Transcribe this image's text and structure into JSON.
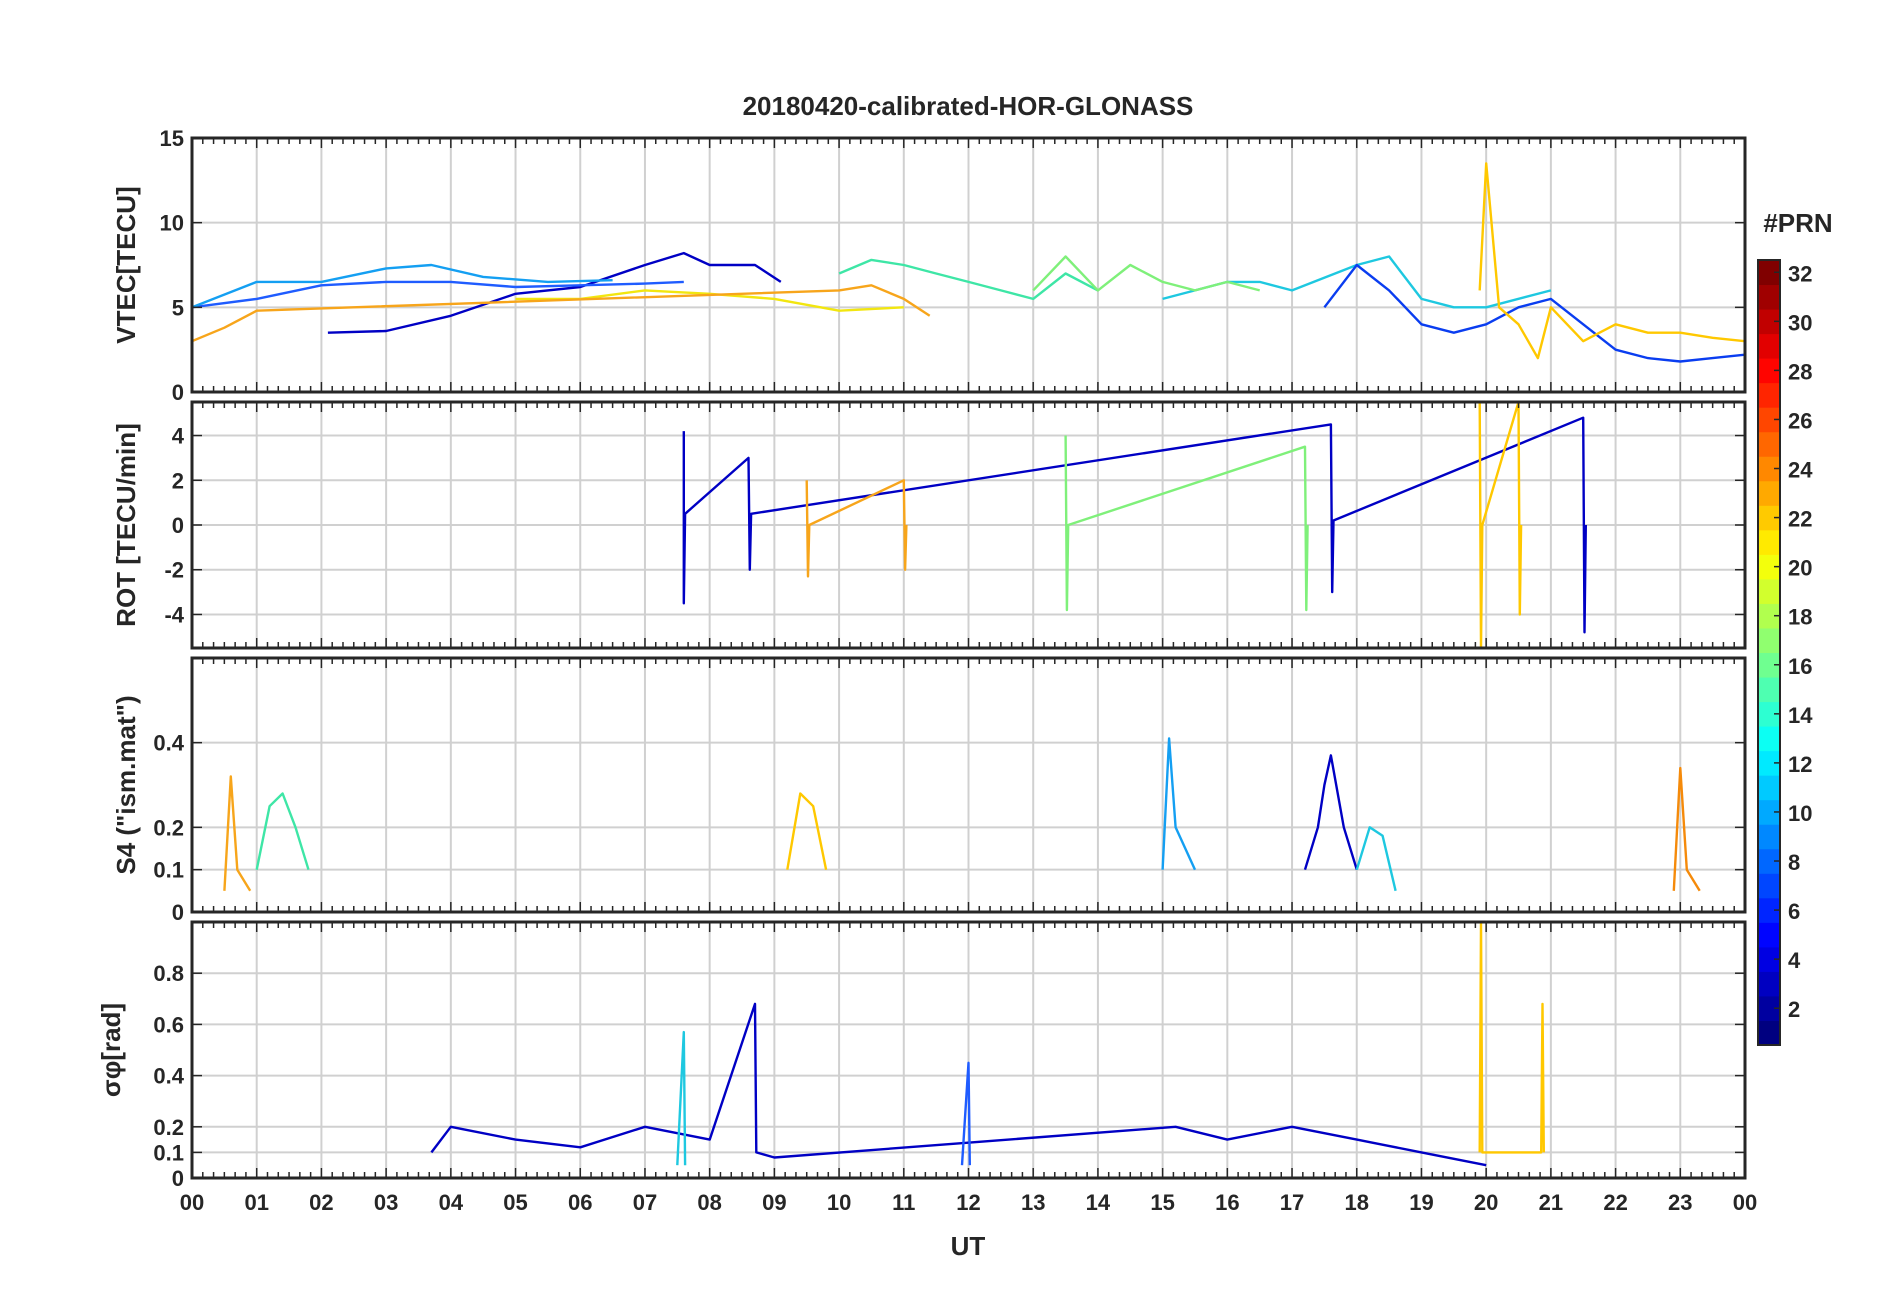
{
  "chart_data": {
    "type": "line",
    "title": "20180420-calibrated-HOR-GLONASS",
    "xlabel": "UT",
    "x_tick_labels": [
      "00",
      "01",
      "02",
      "03",
      "04",
      "05",
      "06",
      "07",
      "08",
      "09",
      "10",
      "11",
      "12",
      "13",
      "14",
      "15",
      "16",
      "17",
      "18",
      "19",
      "20",
      "21",
      "22",
      "23",
      "00"
    ],
    "xlim": [
      0,
      24
    ],
    "grid": true,
    "colorbar": {
      "label": "#PRN",
      "range": [
        1,
        32
      ],
      "tick_labels": [
        "2",
        "4",
        "6",
        "8",
        "10",
        "12",
        "14",
        "16",
        "18",
        "20",
        "22",
        "24",
        "26",
        "28",
        "30",
        "32"
      ]
    },
    "panels": [
      {
        "name": "vtec",
        "ylabel": "VTEC[TECU]",
        "ylim": [
          0,
          15
        ],
        "y_tick_labels": [
          "0",
          "5",
          "10",
          "15"
        ],
        "y_tick_values": [
          0,
          5,
          10,
          15
        ],
        "series": [
          {
            "prn": 2,
            "color": "#0000c4",
            "x": [
              2.1,
              3,
              4,
              5,
              6,
              7,
              7.6,
              8,
              8.7,
              9.1
            ],
            "values": [
              3.5,
              3.6,
              4.5,
              5.8,
              6.2,
              7.5,
              8.2,
              7.5,
              7.5,
              6.5
            ]
          },
          {
            "prn": 6,
            "color": "#1f5cff",
            "x": [
              0,
              1,
              2,
              3,
              4,
              5,
              6,
              7,
              7.6
            ],
            "values": [
              5,
              5.5,
              6.3,
              6.5,
              6.5,
              6.2,
              6.3,
              6.4,
              6.5
            ]
          },
          {
            "prn": 10,
            "color": "#149ff2",
            "x": [
              0,
              1,
              2,
              3,
              3.7,
              4.5,
              5.5,
              6.5
            ],
            "values": [
              5,
              6.5,
              6.5,
              7.3,
              7.5,
              6.8,
              6.5,
              6.6
            ]
          },
          {
            "prn": 12,
            "color": "#1ec8e0",
            "x": [
              15,
              15.5,
              16,
              16.5,
              17,
              18,
              18.5,
              19,
              19.5,
              20,
              21
            ],
            "values": [
              5.5,
              6,
              6.5,
              6.5,
              6,
              7.5,
              8,
              5.5,
              5,
              5,
              6
            ]
          },
          {
            "prn": 14,
            "color": "#3ee6a6",
            "x": [
              10,
              10.5,
              11,
              11.5,
              12,
              12.5,
              13,
              13.5,
              14
            ],
            "values": [
              7,
              7.8,
              7.5,
              7,
              6.5,
              6,
              5.5,
              7,
              6
            ]
          },
          {
            "prn": 16,
            "color": "#7ff07a",
            "x": [
              13,
              13.5,
              14,
              14.5,
              15,
              15.5,
              16,
              16.5
            ],
            "values": [
              6,
              8,
              6,
              7.5,
              6.5,
              6,
              6.5,
              6
            ]
          },
          {
            "prn": 20,
            "color": "#f2e60f",
            "x": [
              5,
              6,
              7,
              8,
              9,
              10,
              11
            ],
            "values": [
              5.5,
              5.5,
              6,
              5.8,
              5.5,
              4.8,
              5
            ]
          },
          {
            "prn": 23,
            "color": "#f7a51b",
            "x": [
              0,
              0.5,
              1,
              10,
              10.5,
              11,
              11.4
            ],
            "values": [
              3,
              3.8,
              4.8,
              6,
              6.3,
              5.5,
              4.5
            ]
          },
          {
            "prn": 8,
            "color": "#0a3df0",
            "x": [
              17.5,
              18,
              18.5,
              19,
              19.5,
              20,
              20.5,
              21,
              21.5,
              22,
              22.5,
              23,
              23.5,
              24
            ],
            "values": [
              5,
              7.5,
              6,
              4,
              3.5,
              4,
              5,
              5.5,
              4,
              2.5,
              2,
              1.8,
              2,
              2.2
            ]
          },
          {
            "prn": 21,
            "color": "#ffc800",
            "x": [
              19.9,
              20,
              20.2,
              20.5,
              20.8,
              21,
              21.5,
              22,
              22.5,
              23,
              23.5,
              24
            ],
            "values": [
              6,
              13.5,
              5,
              4,
              2,
              5,
              3,
              4,
              3.5,
              3.5,
              3.2,
              3
            ]
          }
        ]
      },
      {
        "name": "rot",
        "ylabel": "ROT [TECU/min]",
        "ylim": [
          -5.5,
          5.5
        ],
        "y_tick_labels": [
          "-4",
          "-2",
          "0",
          "2",
          "4"
        ],
        "y_tick_values": [
          -4,
          -2,
          0,
          2,
          4
        ],
        "series": [
          {
            "prn": 2,
            "color": "#0000c4",
            "x": [
              7.6,
              7.6,
              7.62,
              8.6,
              8.62,
              8.64,
              17.6,
              17.62,
              17.64,
              21.5,
              21.52,
              21.54
            ],
            "values": [
              4.2,
              -3.5,
              0.5,
              3,
              -2,
              0.5,
              4.5,
              -3,
              0.2,
              4.8,
              -4.8,
              0
            ]
          },
          {
            "prn": 16,
            "color": "#7ff07a",
            "x": [
              13.5,
              13.52,
              13.54,
              17.2,
              17.22,
              17.24
            ],
            "values": [
              4,
              -3.8,
              0,
              3.5,
              -3.8,
              0
            ]
          },
          {
            "prn": 21,
            "color": "#ffc800",
            "x": [
              19.9,
              19.92,
              19.94,
              20.5,
              20.52,
              20.54
            ],
            "values": [
              5.5,
              -5.5,
              0,
              5.5,
              -4,
              0
            ]
          },
          {
            "prn": 23,
            "color": "#f7a51b",
            "x": [
              9.5,
              9.52,
              9.54,
              11,
              11.02,
              11.04
            ],
            "values": [
              2,
              -2.3,
              0,
              2,
              -2,
              0
            ]
          }
        ]
      },
      {
        "name": "s4",
        "ylabel": "S4 (\"ism.mat\")",
        "ylim": [
          0,
          0.6
        ],
        "y_tick_labels": [
          "0",
          "0.1",
          "0.2",
          "0.4"
        ],
        "y_tick_values": [
          0,
          0.1,
          0.2,
          0.4
        ],
        "series": [
          {
            "prn": 14,
            "color": "#3ee6a6",
            "x": [
              1,
              1.2,
              1.4,
              1.6,
              1.8
            ],
            "values": [
              0.1,
              0.25,
              0.28,
              0.2,
              0.1
            ]
          },
          {
            "prn": 23,
            "color": "#f7a51b",
            "x": [
              0.5,
              0.6,
              0.7,
              0.9
            ],
            "values": [
              0.05,
              0.32,
              0.1,
              0.05
            ]
          },
          {
            "prn": 21,
            "color": "#ffc800",
            "x": [
              9.2,
              9.4,
              9.6,
              9.8
            ],
            "values": [
              0.1,
              0.28,
              0.25,
              0.1
            ]
          },
          {
            "prn": 10,
            "color": "#149ff2",
            "x": [
              15,
              15.1,
              15.2,
              15.5
            ],
            "values": [
              0.1,
              0.41,
              0.2,
              0.1
            ]
          },
          {
            "prn": 2,
            "color": "#0000c4",
            "x": [
              17.2,
              17.4,
              17.5,
              17.6,
              17.8,
              18
            ],
            "values": [
              0.1,
              0.2,
              0.3,
              0.37,
              0.2,
              0.1
            ]
          },
          {
            "prn": 12,
            "color": "#1ec8e0",
            "x": [
              18,
              18.2,
              18.4,
              18.6
            ],
            "values": [
              0.1,
              0.2,
              0.18,
              0.05
            ]
          },
          {
            "prn": 24,
            "color": "#f58a0a",
            "x": [
              22.9,
              23,
              23.1,
              23.3
            ],
            "values": [
              0.05,
              0.34,
              0.1,
              0.05
            ]
          }
        ]
      },
      {
        "name": "sigma_phi",
        "ylabel": "σφ[rad]",
        "ylim": [
          0,
          1
        ],
        "y_tick_labels": [
          "0",
          "0.1",
          "0.2",
          "0.4",
          "0.6",
          "0.8"
        ],
        "y_tick_values": [
          0,
          0.1,
          0.2,
          0.4,
          0.6,
          0.8
        ],
        "series": [
          {
            "prn": 2,
            "color": "#0000c4",
            "x": [
              3.7,
              4,
              5,
              6,
              7,
              8,
              8.7,
              8.72,
              9,
              15.2,
              16,
              17,
              18,
              19,
              20
            ],
            "values": [
              0.1,
              0.2,
              0.15,
              0.12,
              0.2,
              0.15,
              0.68,
              0.1,
              0.08,
              0.2,
              0.15,
              0.2,
              0.15,
              0.1,
              0.05
            ]
          },
          {
            "prn": 12,
            "color": "#1ec8e0",
            "x": [
              7.5,
              7.6,
              7.62
            ],
            "values": [
              0.05,
              0.57,
              0.05
            ]
          },
          {
            "prn": 6,
            "color": "#1f5cff",
            "x": [
              11.9,
              12,
              12.02
            ],
            "values": [
              0.05,
              0.45,
              0.05
            ]
          },
          {
            "prn": 21,
            "color": "#ffc800",
            "x": [
              19.9,
              19.92,
              19.94,
              20.85,
              20.87,
              20.89
            ],
            "values": [
              0.1,
              1.0,
              0.1,
              0.1,
              0.68,
              0.1
            ]
          }
        ]
      }
    ]
  }
}
